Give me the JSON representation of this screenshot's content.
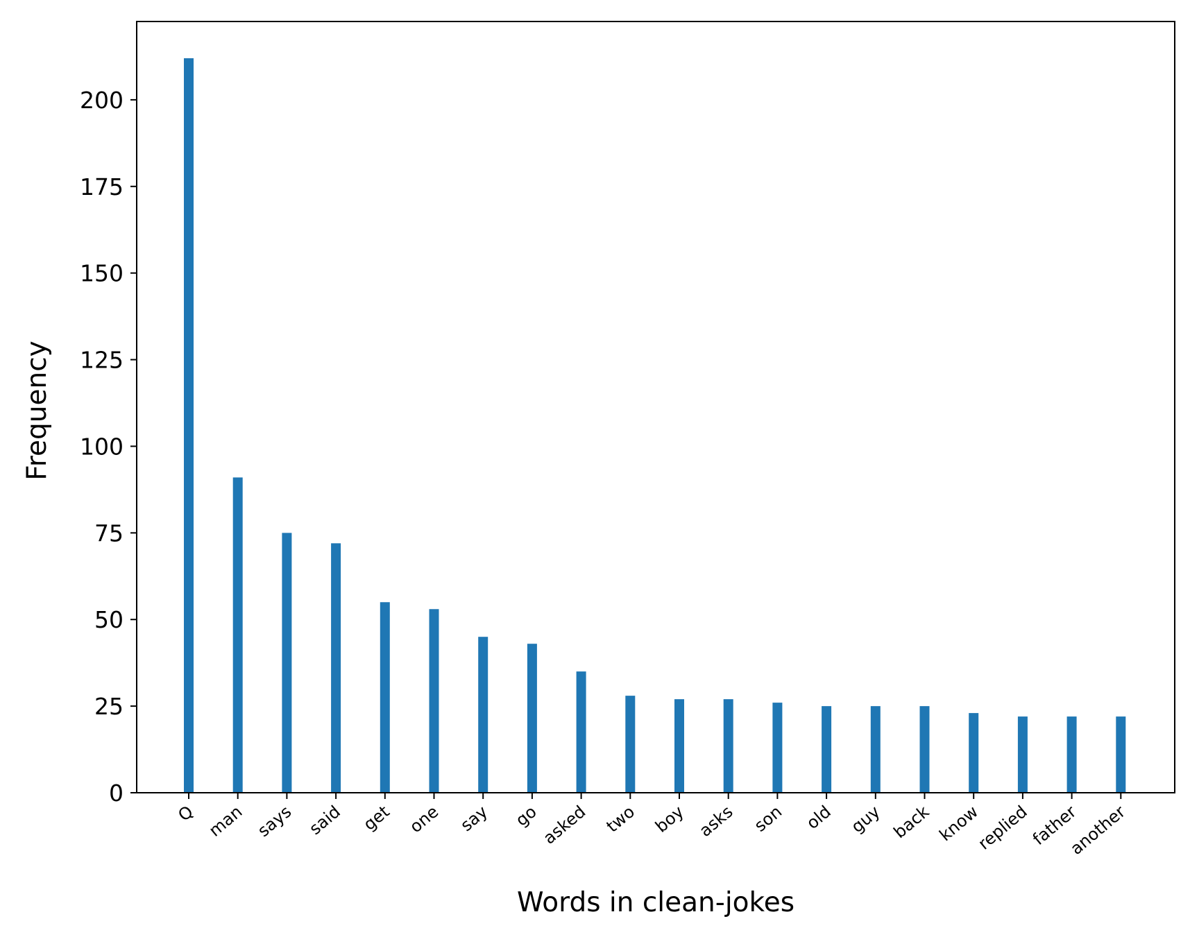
{
  "chart_data": {
    "type": "bar",
    "title": "",
    "xlabel": "Words in clean-jokes",
    "ylabel": "Frequency",
    "categories": [
      "Q",
      "man",
      "says",
      "said",
      "get",
      "one",
      "say",
      "go",
      "asked",
      "two",
      "boy",
      "asks",
      "son",
      "old",
      "guy",
      "back",
      "know",
      "replied",
      "father",
      "another"
    ],
    "values": [
      212,
      91,
      75,
      72,
      55,
      53,
      45,
      43,
      35,
      28,
      27,
      27,
      26,
      25,
      25,
      25,
      23,
      22,
      22,
      22
    ],
    "yticks": [
      0,
      25,
      50,
      75,
      100,
      125,
      150,
      175,
      200
    ],
    "ylim": [
      0,
      222.6
    ],
    "grid": false,
    "bar_color": "#1f77b4"
  }
}
